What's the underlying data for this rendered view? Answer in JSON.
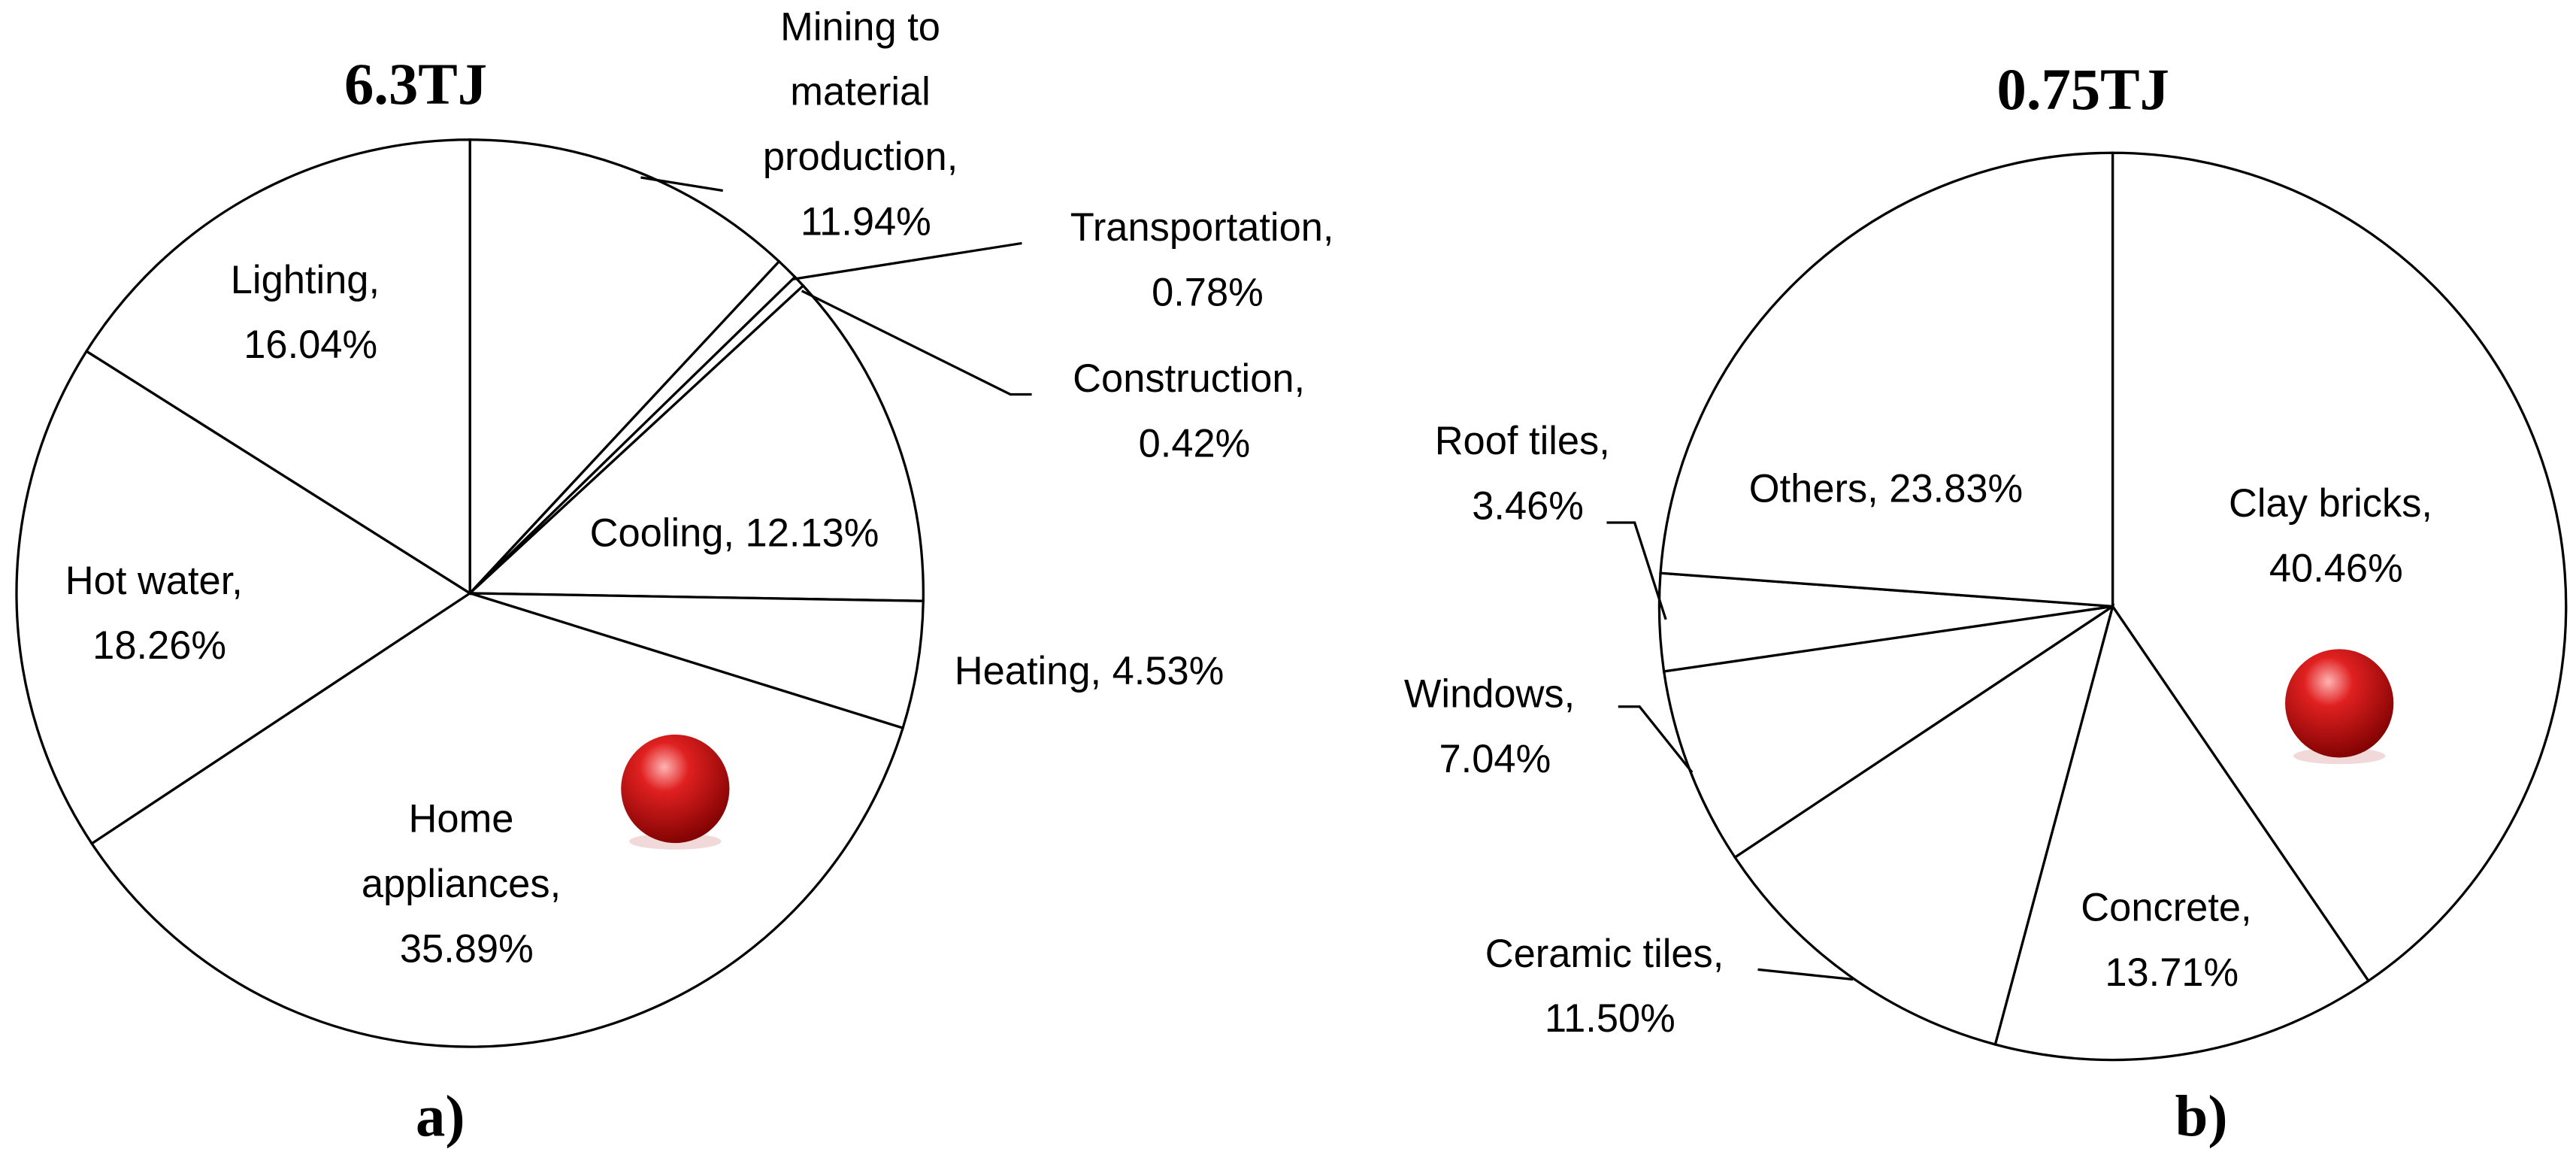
{
  "chart_data": [
    {
      "type": "pie",
      "title": "6.3TJ",
      "caption": "a)",
      "color": "#ffffff",
      "labels": [
        "Mining to material production, 11.94%",
        "Transportation, 0.78%",
        "Construction, 0.42%",
        "Cooling, 12.13%",
        "Heating, 4.53%",
        "Home appliances, 35.89%",
        "Hot water, 18.26%",
        "Lighting, 16.04%"
      ],
      "values": [
        11.94,
        0.78,
        0.42,
        12.13,
        4.53,
        35.89,
        18.26,
        16.04
      ]
    },
    {
      "type": "pie",
      "title": "0.75TJ",
      "caption": "b)",
      "color": "#ffffff",
      "labels": [
        "Clay bricks, 40.46%",
        "Concrete, 13.71%",
        "Ceramic tiles, 11.50%",
        "Windows, 7.04%",
        "Roof tiles, 3.46%",
        "Others, 23.83%"
      ],
      "values": [
        40.46,
        13.71,
        11.5,
        7.04,
        3.46,
        23.83
      ]
    }
  ]
}
